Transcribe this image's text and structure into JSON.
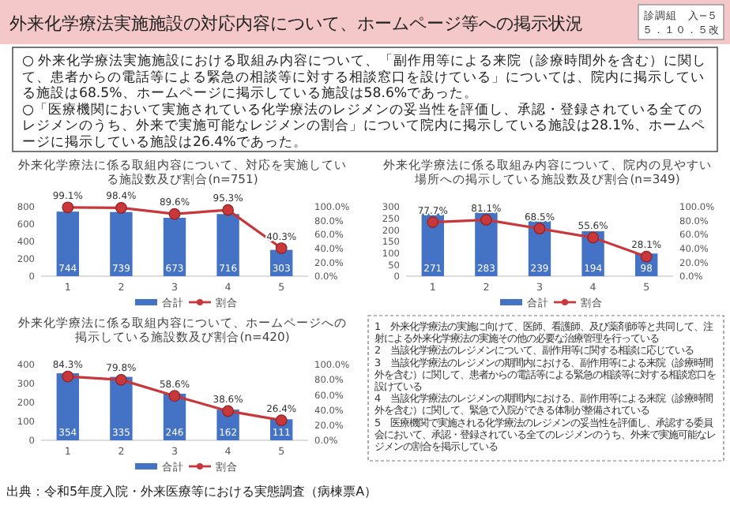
{
  "chart_data": [
    {
      "type": "other",
      "title": "外来化学療法実施施設の対応内容について、ホームページ等への掲示状況",
      "annotations": [
        "診調組　入−５",
        "５．１０．５改",
        "○ 外来化学療法実施施設における取組み内容について、「副作用等による来院（診療時間外を含む）に関して、患者からの電話等による緊急の相談等に対する相談窓口を設けている」については、院内に掲示している施設は68.5%、ホームページに掲示している施設は58.6%であった。",
        "○「医療機関において実施されている化学療法のレジメンの妥当性を評価し、承認・登録されている全てのレジメンのうち、外来で実施可能なレジメンの割合」について院内に掲示している施設は28.1%、ホームページに掲示している施設は26.4%であった。"
      ]
    },
    {
      "type": "bar",
      "title": "外来化学療法に係る取組内容について、対応を実施している施設数及び割合(n=751)",
      "categories": [
        "1",
        "2",
        "3",
        "4",
        "5"
      ],
      "series": [
        {
          "name": "合計",
          "color": "#4472c4",
          "values": [
            744,
            739,
            673,
            716,
            303
          ],
          "value_labels": [
            "744",
            "739",
            "673",
            "716",
            "303"
          ]
        },
        {
          "name": "割合",
          "type": "line",
          "axis": "y2",
          "color": "#c8373a",
          "values": [
            99.1,
            98.4,
            89.6,
            95.3,
            40.3
          ],
          "value_labels": [
            "99.1%",
            "98.4%",
            "89.6%",
            "95.3%",
            "40.3%"
          ]
        }
      ],
      "ylim": [
        0,
        800
      ],
      "yticks": [
        0,
        200,
        400,
        600,
        800
      ],
      "y2lim": [
        0,
        100
      ],
      "y2ticks": [
        {
          "value": 0,
          "label": "0.0%"
        },
        {
          "value": 20,
          "label": "20.0%"
        },
        {
          "value": 40,
          "label": "40.0%"
        },
        {
          "value": 60,
          "label": "60.0%"
        },
        {
          "value": 80,
          "label": "80.0%"
        },
        {
          "value": 100,
          "label": "100.0%"
        }
      ],
      "legend": "bottom",
      "marker": "circle"
    },
    {
      "type": "bar",
      "title": "外来化学療法に係る取組み内容について、院内の見やすい場所への掲示している施設数及び割合(n=349)",
      "categories": [
        "1",
        "2",
        "3",
        "4",
        "5"
      ],
      "series": [
        {
          "name": "合計",
          "color": "#4472c4",
          "values": [
            271,
            283,
            239,
            194,
            98
          ],
          "value_labels": [
            "271",
            "283",
            "239",
            "194",
            "98"
          ]
        },
        {
          "name": "割合",
          "type": "line",
          "axis": "y2",
          "color": "#c8373a",
          "values": [
            77.7,
            81.1,
            68.5,
            55.6,
            28.1
          ],
          "value_labels": [
            "77.7%",
            "81.1%",
            "68.5%",
            "55.6%",
            "28.1%"
          ]
        }
      ],
      "ylim": [
        0,
        300
      ],
      "yticks": [
        0,
        50,
        100,
        150,
        200,
        250,
        300
      ],
      "y2lim": [
        0,
        100
      ],
      "y2ticks": [
        {
          "value": 0,
          "label": "0.0%"
        },
        {
          "value": 20,
          "label": "20.0%"
        },
        {
          "value": 40,
          "label": "40.0%"
        },
        {
          "value": 60,
          "label": "60.0%"
        },
        {
          "value": 80,
          "label": "80.0%"
        },
        {
          "value": 100,
          "label": "100.0%"
        }
      ],
      "legend": "bottom",
      "marker": "circle"
    },
    {
      "type": "bar",
      "title": "外来化学療法に係る取組内容について、ホームページへの掲示している施設数及び割合(n=420)",
      "categories": [
        "1",
        "2",
        "3",
        "4",
        "5"
      ],
      "series": [
        {
          "name": "合計",
          "color": "#4472c4",
          "values": [
            354,
            335,
            246,
            162,
            111
          ],
          "value_labels": [
            "354",
            "335",
            "246",
            "162",
            "111"
          ]
        },
        {
          "name": "割合",
          "type": "line",
          "axis": "y2",
          "color": "#c8373a",
          "values": [
            84.3,
            79.8,
            58.6,
            38.6,
            26.4
          ],
          "value_labels": [
            "84.3%",
            "79.8%",
            "58.6%",
            "38.6%",
            "26.4%"
          ]
        }
      ],
      "ylim": [
        0,
        400
      ],
      "yticks": [
        0,
        100,
        200,
        300,
        400
      ],
      "y2lim": [
        0,
        100
      ],
      "y2ticks": [
        {
          "value": 0,
          "label": "0.0%"
        },
        {
          "value": 20,
          "label": "20.0%"
        },
        {
          "value": 40,
          "label": "40.0%"
        },
        {
          "value": 60,
          "label": "60.0%"
        },
        {
          "value": 80,
          "label": "80.0%"
        },
        {
          "value": 100,
          "label": "100.0%"
        }
      ],
      "legend": "bottom",
      "marker": "circle"
    },
    {
      "type": "other",
      "annotations": [
        "1　外来化学療法の実施に向けて、医師、看護師、及び薬剤師等と共同して、注射による外来化学療法の実施その他の必要な治療管理を行っている",
        "2　当該化学療法のレジメンについて、副作用等に関する相談に応じている",
        "3　当該化学療法のレジメンの期間内における、副作用等による来院（診療時間外を含む）に関して、患者からの電話等による緊急の相談等に対する相談窓口を設けている",
        "4　当該化学療法のレジメンの期間内における、副作用等による来院（診療時間外を含む）に関して、緊急で入院ができる体制が整備されている",
        "5　医療機関で実施される化学療法のレジメンの妥当性を評価し、承認する委員会において、承認・登録されている全てのレジメンのうち、外来で実施可能なレジメンの割合を掲示している",
        "出典：令和5年度入院・外来医療等における実態調査（病棟票A）"
      ]
    }
  ]
}
